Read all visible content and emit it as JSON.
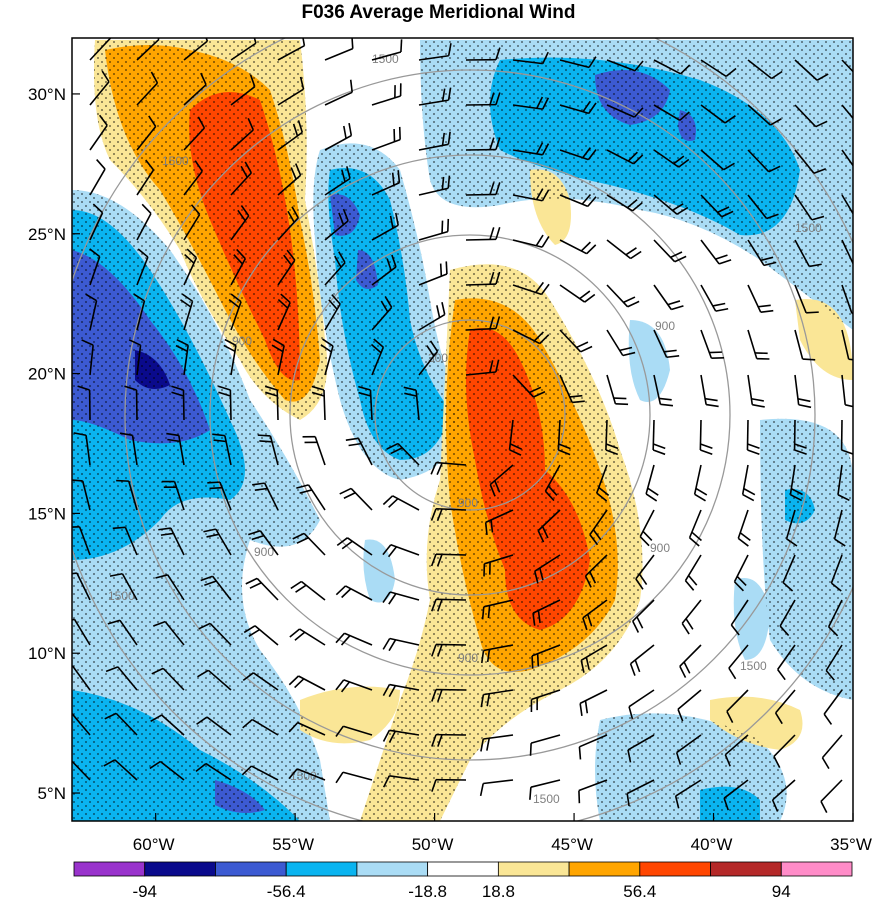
{
  "title": "F036 Average Meridional Wind",
  "map": {
    "lon_range": [
      -63,
      -35
    ],
    "lat_range": [
      4,
      32
    ],
    "lat_ticks": [
      {
        "value": 30,
        "label": "30°N"
      },
      {
        "value": 25,
        "label": "25°N"
      },
      {
        "value": 20,
        "label": "20°N"
      },
      {
        "value": 15,
        "label": "15°N"
      },
      {
        "value": 10,
        "label": "10°N"
      },
      {
        "value": 5,
        "label": "5°N"
      }
    ],
    "lon_ticks": [
      {
        "value": -60,
        "label": "60°W"
      },
      {
        "value": -55,
        "label": "55°W"
      },
      {
        "value": -50,
        "label": "50°W"
      },
      {
        "value": -45,
        "label": "45°W"
      },
      {
        "value": -40,
        "label": "40°W"
      },
      {
        "value": -35,
        "label": "35°W"
      }
    ],
    "range_ring_labels": [
      "300",
      "900",
      "1500"
    ]
  },
  "colorbar": {
    "colors": [
      "#9933cc",
      "#0a0a8c",
      "#3c5ad2",
      "#0ab4f0",
      "#aadcf5",
      "#ffffff",
      "#fae696",
      "#ffa500",
      "#ff4600",
      "#b42828",
      "#ff8cc8"
    ],
    "labels": [
      "-94",
      "-56.4",
      "-18.8",
      "18.8",
      "56.4",
      "94"
    ]
  },
  "colors": {
    "frame": "#000000",
    "ring": "#999999",
    "barb": "#000000"
  }
}
